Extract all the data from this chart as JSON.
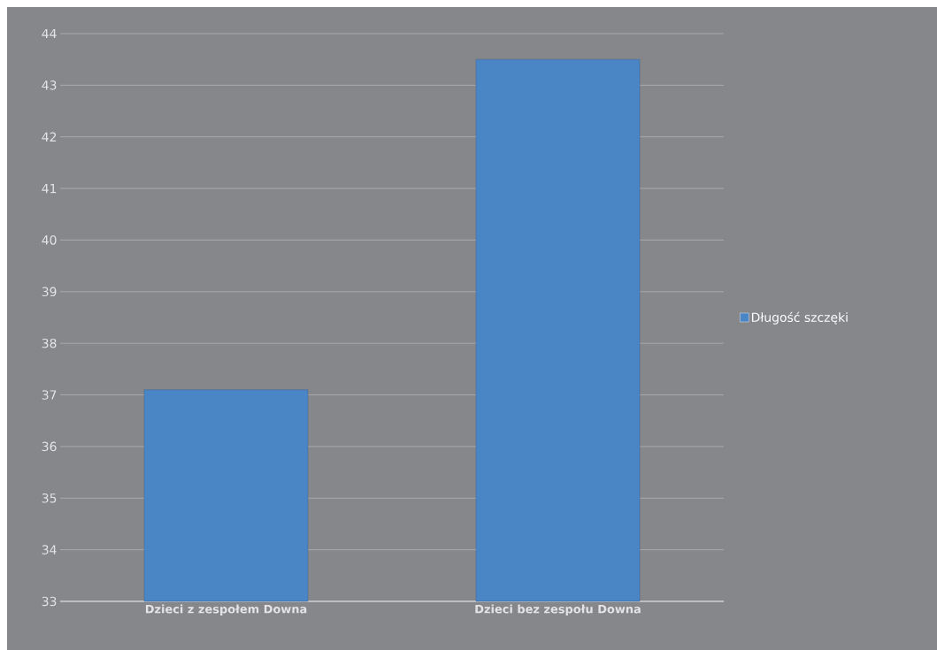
{
  "chart_data": {
    "type": "bar",
    "categories": [
      "Dzieci z zespołem Downa",
      "Dzieci bez zespołu Downa"
    ],
    "series": [
      {
        "name": "Długość szczęki",
        "color": "#4a85c6",
        "values": [
          37.1,
          43.5
        ]
      }
    ],
    "ylim": [
      33,
      44
    ],
    "yticks": [
      33,
      34,
      35,
      36,
      37,
      38,
      39,
      40,
      41,
      42,
      43,
      44
    ],
    "grid": "y",
    "legend": "right"
  }
}
